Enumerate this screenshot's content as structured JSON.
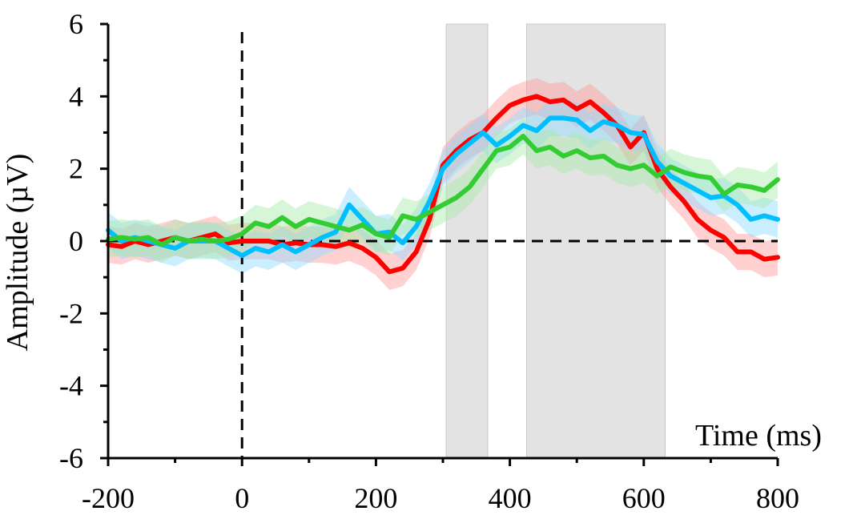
{
  "chart_data": {
    "type": "line",
    "title": "",
    "xlabel": "Time (ms)",
    "ylabel": "Amplitude (µV)",
    "xlim": [
      -200,
      800
    ],
    "ylim": [
      -6,
      6
    ],
    "xticks": [
      -200,
      0,
      200,
      400,
      600,
      800
    ],
    "yticks": [
      6,
      4,
      2,
      0,
      -2,
      -4,
      -6
    ],
    "grid": false,
    "legend": "none",
    "reference_lines": [
      {
        "axis": "x",
        "value": 0,
        "style": "dashed"
      },
      {
        "axis": "y",
        "value": 0,
        "style": "dashed"
      }
    ],
    "shaded_windows": [
      {
        "x0": 305,
        "x1": 367
      },
      {
        "x0": 425,
        "x1": 632
      }
    ],
    "band_half_width": 0.5,
    "series": [
      {
        "color": "#ff0000",
        "band_color": "#ff9a9a",
        "x": [
          -200,
          -180,
          -160,
          -140,
          -120,
          -100,
          -80,
          -60,
          -40,
          -20,
          0,
          20,
          40,
          60,
          80,
          100,
          120,
          140,
          160,
          180,
          200,
          220,
          240,
          260,
          280,
          300,
          320,
          340,
          360,
          380,
          400,
          420,
          440,
          460,
          480,
          500,
          520,
          540,
          560,
          580,
          600,
          620,
          640,
          660,
          680,
          700,
          720,
          740,
          760,
          780,
          800
        ],
        "y": [
          -0.1,
          -0.15,
          0.0,
          -0.1,
          0.0,
          0.1,
          0.0,
          0.1,
          0.2,
          -0.05,
          0.0,
          0.0,
          0.0,
          -0.1,
          -0.05,
          -0.1,
          -0.1,
          -0.15,
          -0.05,
          -0.2,
          -0.45,
          -0.85,
          -0.75,
          -0.3,
          0.6,
          2.1,
          2.5,
          2.8,
          3.0,
          3.4,
          3.75,
          3.9,
          4.0,
          3.85,
          3.9,
          3.65,
          3.85,
          3.55,
          3.2,
          2.6,
          3.0,
          2.0,
          1.5,
          1.1,
          0.6,
          0.3,
          0.1,
          -0.3,
          -0.3,
          -0.5,
          -0.45
        ]
      },
      {
        "color": "#00bfff",
        "band_color": "#8fdcff",
        "x": [
          -200,
          -180,
          -160,
          -140,
          -120,
          -100,
          -80,
          -60,
          -40,
          -20,
          0,
          20,
          40,
          60,
          80,
          100,
          120,
          140,
          160,
          180,
          200,
          220,
          240,
          260,
          280,
          300,
          320,
          340,
          360,
          380,
          400,
          420,
          440,
          460,
          480,
          500,
          520,
          540,
          560,
          580,
          600,
          620,
          640,
          660,
          680,
          700,
          720,
          740,
          760,
          780,
          800
        ],
        "y": [
          0.3,
          0.0,
          0.1,
          0.0,
          -0.1,
          -0.2,
          0.0,
          0.0,
          0.0,
          -0.2,
          -0.4,
          -0.2,
          -0.3,
          -0.1,
          -0.3,
          -0.1,
          0.1,
          0.25,
          1.0,
          0.6,
          0.2,
          0.25,
          -0.05,
          0.4,
          1.1,
          2.0,
          2.4,
          2.7,
          3.0,
          2.65,
          2.9,
          3.2,
          3.05,
          3.4,
          3.4,
          3.35,
          3.05,
          3.3,
          3.2,
          3.0,
          2.95,
          2.2,
          1.8,
          1.6,
          1.4,
          1.2,
          1.25,
          1.0,
          0.6,
          0.7,
          0.6
        ]
      },
      {
        "color": "#33cc33",
        "band_color": "#a6e8a6",
        "x": [
          -200,
          -180,
          -160,
          -140,
          -120,
          -100,
          -80,
          -60,
          -40,
          -20,
          0,
          20,
          40,
          60,
          80,
          100,
          120,
          140,
          160,
          180,
          200,
          220,
          240,
          260,
          280,
          300,
          320,
          340,
          360,
          380,
          400,
          420,
          440,
          460,
          480,
          500,
          520,
          540,
          560,
          580,
          600,
          620,
          640,
          660,
          680,
          700,
          720,
          740,
          760,
          780,
          800
        ],
        "y": [
          0.05,
          0.1,
          0.05,
          0.1,
          -0.1,
          0.1,
          0.0,
          0.05,
          0.0,
          0.05,
          0.2,
          0.5,
          0.4,
          0.65,
          0.4,
          0.6,
          0.5,
          0.4,
          0.3,
          0.45,
          0.2,
          0.1,
          0.7,
          0.6,
          0.8,
          1.0,
          1.2,
          1.5,
          2.0,
          2.5,
          2.6,
          2.9,
          2.5,
          2.6,
          2.35,
          2.5,
          2.3,
          2.35,
          2.1,
          2.0,
          2.1,
          1.8,
          2.05,
          1.9,
          1.8,
          1.75,
          1.3,
          1.55,
          1.5,
          1.4,
          1.7
        ]
      }
    ]
  }
}
